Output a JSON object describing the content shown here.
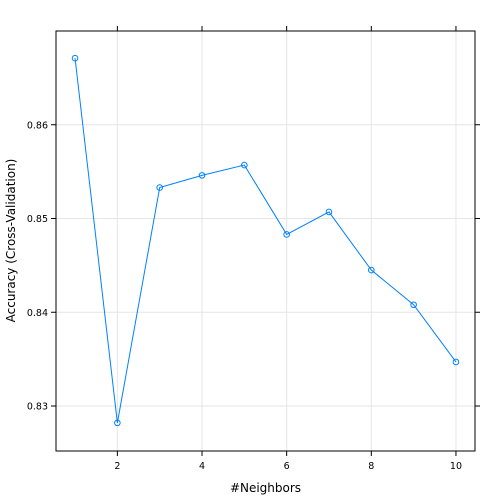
{
  "chart_data": {
    "type": "line",
    "title": "",
    "xlabel": "#Neighbors",
    "ylabel": "Accuracy (Cross-Validation)",
    "x": [
      1,
      2,
      3,
      4,
      5,
      6,
      7,
      8,
      9,
      10
    ],
    "series": [
      {
        "values": [
          0.8671,
          0.8282,
          0.8533,
          0.8546,
          0.8557,
          0.8483,
          0.8507,
          0.8445,
          0.8408,
          0.8347
        ]
      }
    ],
    "x_ticks": [
      2,
      4,
      6,
      8,
      10
    ],
    "x_tick_labels": [
      "2",
      "4",
      "6",
      "8",
      "10"
    ],
    "y_ticks": [
      0.83,
      0.84,
      0.85,
      0.86
    ],
    "y_tick_labels": [
      "0.83",
      "0.84",
      "0.85",
      "0.86"
    ],
    "xlim": [
      0.55,
      10.45
    ],
    "ylim": [
      0.8252,
      0.87
    ],
    "grid": true,
    "colors": {
      "series": "#0080ff",
      "grid": "#e6e6e6",
      "frame": "#000000"
    }
  }
}
